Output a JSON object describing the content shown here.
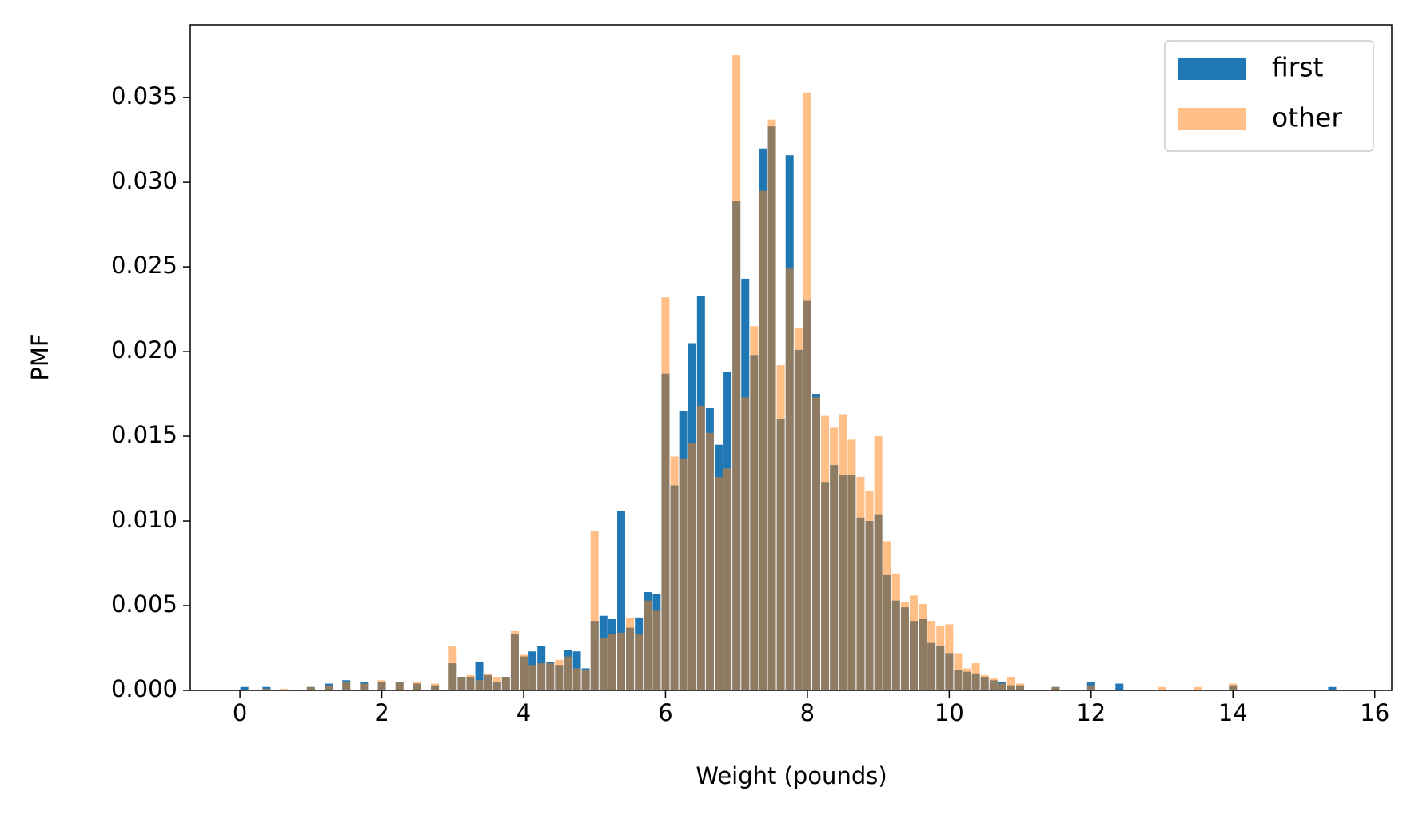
{
  "chart_data": {
    "type": "bar",
    "xlabel": "Weight (pounds)",
    "ylabel": "PMF",
    "x": [
      0.0625,
      0.375,
      0.625,
      1.0,
      1.25,
      1.5,
      1.75,
      2.0,
      2.25,
      2.5,
      2.75,
      3.0,
      3.125,
      3.25,
      3.375,
      3.5,
      3.625,
      3.75,
      3.875,
      4.0,
      4.125,
      4.25,
      4.375,
      4.5,
      4.625,
      4.75,
      4.875,
      5.0,
      5.125,
      5.25,
      5.375,
      5.5,
      5.625,
      5.75,
      5.875,
      6.0,
      6.125,
      6.25,
      6.375,
      6.5,
      6.625,
      6.75,
      6.875,
      7.0,
      7.125,
      7.25,
      7.375,
      7.5,
      7.625,
      7.75,
      7.875,
      8.0,
      8.125,
      8.25,
      8.375,
      8.5,
      8.625,
      8.75,
      8.875,
      9.0,
      9.125,
      9.25,
      9.375,
      9.5,
      9.625,
      9.75,
      9.875,
      10.0,
      10.125,
      10.25,
      10.375,
      10.5,
      10.625,
      10.75,
      10.875,
      11.0,
      11.5,
      12.0,
      12.4,
      13.0,
      13.5,
      14.0,
      15.4
    ],
    "series": [
      {
        "name": "first",
        "color": "#1f77b4",
        "opacity": 1,
        "values": [
          0.0002,
          0.0002,
          null,
          0.0002,
          0.0004,
          0.0006,
          0.0005,
          0.0005,
          0.0005,
          0.0004,
          0.0003,
          0.0016,
          0.0008,
          0.0008,
          0.0017,
          0.0009,
          0.0005,
          0.0008,
          0.0033,
          0.002,
          0.0023,
          0.0026,
          0.0017,
          0.0015,
          0.0024,
          0.0023,
          0.0013,
          0.0041,
          0.0044,
          0.0042,
          0.0106,
          0.0037,
          0.0043,
          0.0058,
          0.0057,
          0.0187,
          0.0121,
          0.0165,
          0.0205,
          0.0233,
          0.0167,
          0.0145,
          0.0188,
          0.0289,
          0.0243,
          0.0198,
          0.032,
          0.0333,
          0.016,
          0.0316,
          0.0201,
          0.023,
          0.0175,
          0.0123,
          0.0133,
          0.0127,
          0.0127,
          0.0102,
          0.01,
          0.0104,
          0.0068,
          0.0053,
          0.0049,
          0.0041,
          0.0042,
          0.0028,
          0.0026,
          0.0022,
          0.0012,
          0.0011,
          0.001,
          0.0008,
          0.0006,
          0.0005,
          0.0003,
          0.0003,
          0.0002,
          0.0005,
          0.0004,
          null,
          null,
          0.0003,
          0.0002
        ]
      },
      {
        "name": "other",
        "color": "#ff7f0e",
        "opacity": 0.5,
        "values": [
          null,
          0.0001,
          0.0001,
          0.0002,
          0.0003,
          0.0005,
          0.0004,
          0.0006,
          0.0005,
          0.0005,
          0.0004,
          0.0026,
          0.0008,
          0.0009,
          0.0006,
          0.001,
          0.0008,
          0.0008,
          0.0035,
          0.0021,
          0.0015,
          0.0016,
          0.0016,
          0.0018,
          0.002,
          0.0013,
          0.0012,
          0.0094,
          0.0031,
          0.0033,
          0.0034,
          0.0043,
          0.0033,
          0.0053,
          0.0047,
          0.0232,
          0.0138,
          0.0137,
          0.0146,
          0.0168,
          0.0152,
          0.0126,
          0.0131,
          0.0375,
          0.0173,
          0.0215,
          0.0295,
          0.0337,
          0.0192,
          0.0249,
          0.0214,
          0.0353,
          0.0173,
          0.0162,
          0.0155,
          0.0163,
          0.0148,
          0.0126,
          0.0118,
          0.015,
          0.0088,
          0.0069,
          0.0052,
          0.0056,
          0.0051,
          0.0041,
          0.0038,
          0.0039,
          0.0022,
          0.0013,
          0.0016,
          0.0009,
          0.0007,
          0.0004,
          0.0008,
          0.0004,
          0.0002,
          0.0003,
          null,
          0.0002,
          0.0002,
          0.0004,
          null
        ]
      }
    ],
    "xlim": [
      -0.7,
      16.24
    ],
    "xticks": [
      0,
      2,
      4,
      6,
      8,
      10,
      12,
      14,
      16
    ],
    "ylim": [
      0,
      0.0393
    ],
    "yticks": [
      {
        "value": 0,
        "label": "0.000"
      },
      {
        "value": 0.005,
        "label": "0.005"
      },
      {
        "value": 0.01,
        "label": "0.010"
      },
      {
        "value": 0.015,
        "label": "0.015"
      },
      {
        "value": 0.02,
        "label": "0.020"
      },
      {
        "value": 0.025,
        "label": "0.025"
      },
      {
        "value": 0.03,
        "label": "0.030"
      },
      {
        "value": 0.035,
        "label": "0.035"
      }
    ],
    "legend": "upper right"
  }
}
